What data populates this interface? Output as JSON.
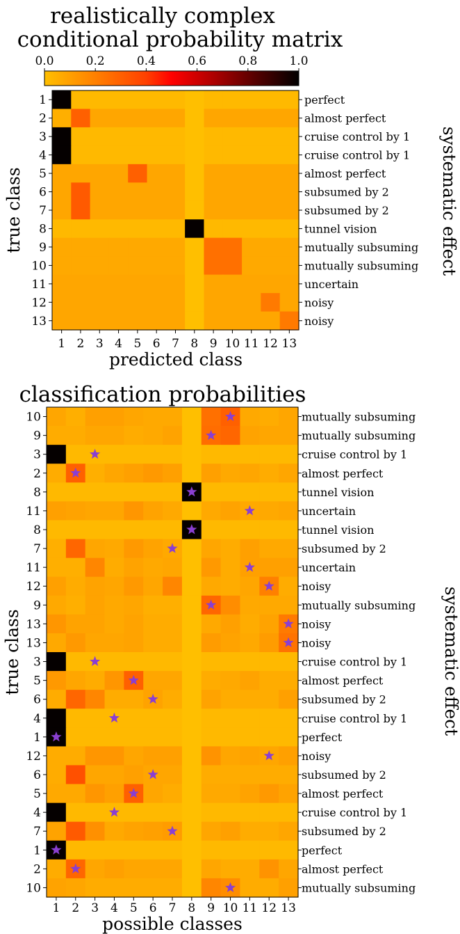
{
  "chart_data": [
    {
      "type": "heatmap",
      "title_lines": [
        "realistically complex",
        "conditional probability matrix"
      ],
      "xlabel": "predicted class",
      "ylabel": "true class",
      "right_label": "systematic effect",
      "colorbar": {
        "min": 0.0,
        "max": 1.0,
        "ticks": [
          "0.0",
          "0.2",
          "0.4",
          "0.6",
          "0.8",
          "1.0"
        ],
        "colormap": "hot_r"
      },
      "x_tick_labels": [
        "1",
        "2",
        "3",
        "4",
        "5",
        "6",
        "7",
        "8",
        "9",
        "10",
        "11",
        "12",
        "13"
      ],
      "y_tick_labels": [
        "1",
        "2",
        "3",
        "4",
        "5",
        "6",
        "7",
        "8",
        "9",
        "10",
        "11",
        "12",
        "13"
      ],
      "row_effects": [
        "perfect",
        "almost perfect",
        "cruise control by 1",
        "cruise control by 1",
        "almost perfect",
        "subsumed by 2",
        "subsumed by 2",
        "tunnel vision",
        "mutually subsuming",
        "mutually subsuming",
        "uncertain",
        "noisy",
        "noisy"
      ],
      "matrix": [
        [
          0.99,
          0.02,
          0.02,
          0.02,
          0.02,
          0.02,
          0.02,
          0.0,
          0.02,
          0.02,
          0.02,
          0.02,
          0.02
        ],
        [
          0.05,
          0.3,
          0.08,
          0.08,
          0.08,
          0.08,
          0.08,
          0.0,
          0.08,
          0.08,
          0.08,
          0.08,
          0.08
        ],
        [
          0.99,
          0.02,
          0.02,
          0.02,
          0.02,
          0.02,
          0.02,
          0.0,
          0.02,
          0.02,
          0.02,
          0.02,
          0.02
        ],
        [
          0.99,
          0.02,
          0.02,
          0.02,
          0.02,
          0.02,
          0.02,
          0.0,
          0.02,
          0.02,
          0.02,
          0.02,
          0.02
        ],
        [
          0.08,
          0.08,
          0.08,
          0.08,
          0.3,
          0.08,
          0.08,
          0.0,
          0.08,
          0.08,
          0.08,
          0.08,
          0.08
        ],
        [
          0.08,
          0.32,
          0.08,
          0.08,
          0.08,
          0.08,
          0.08,
          0.0,
          0.08,
          0.08,
          0.08,
          0.08,
          0.08
        ],
        [
          0.08,
          0.32,
          0.08,
          0.08,
          0.08,
          0.08,
          0.08,
          0.0,
          0.08,
          0.08,
          0.08,
          0.08,
          0.08
        ],
        [
          0.02,
          0.02,
          0.02,
          0.02,
          0.02,
          0.02,
          0.02,
          0.99,
          0.02,
          0.02,
          0.02,
          0.02,
          0.02
        ],
        [
          0.07,
          0.07,
          0.07,
          0.07,
          0.07,
          0.07,
          0.07,
          0.0,
          0.25,
          0.25,
          0.07,
          0.07,
          0.07
        ],
        [
          0.07,
          0.07,
          0.07,
          0.07,
          0.07,
          0.07,
          0.07,
          0.0,
          0.25,
          0.25,
          0.07,
          0.07,
          0.07
        ],
        [
          0.08,
          0.08,
          0.08,
          0.08,
          0.08,
          0.08,
          0.08,
          0.0,
          0.08,
          0.08,
          0.08,
          0.08,
          0.08
        ],
        [
          0.08,
          0.08,
          0.08,
          0.08,
          0.08,
          0.08,
          0.08,
          0.0,
          0.08,
          0.08,
          0.08,
          0.22,
          0.08
        ],
        [
          0.08,
          0.08,
          0.08,
          0.08,
          0.08,
          0.08,
          0.08,
          0.0,
          0.08,
          0.08,
          0.08,
          0.08,
          0.22
        ]
      ]
    },
    {
      "type": "heatmap",
      "title": "classification probabilities",
      "xlabel": "possible classes",
      "ylabel": "true class",
      "right_label": "systematic effect",
      "x_tick_labels": [
        "1",
        "2",
        "3",
        "4",
        "5",
        "6",
        "7",
        "8",
        "9",
        "10",
        "11",
        "12",
        "13"
      ],
      "star_color": "#8a3fd1",
      "rows": [
        {
          "true_class": "10",
          "effect": "mutually subsuming",
          "star": 10,
          "probs": [
            0.08,
            0.05,
            0.1,
            0.1,
            0.08,
            0.07,
            0.07,
            0.0,
            0.25,
            0.3,
            0.07,
            0.06,
            0.08
          ]
        },
        {
          "true_class": "9",
          "effect": "mutually subsuming",
          "star": 9,
          "probs": [
            0.06,
            0.06,
            0.08,
            0.08,
            0.06,
            0.07,
            0.09,
            0.0,
            0.26,
            0.28,
            0.09,
            0.08,
            0.08
          ]
        },
        {
          "true_class": "3",
          "effect": "cruise control by 1",
          "star": 3,
          "probs": [
            0.99,
            0.02,
            0.02,
            0.02,
            0.02,
            0.02,
            0.02,
            0.0,
            0.02,
            0.02,
            0.02,
            0.02,
            0.02
          ]
        },
        {
          "true_class": "2",
          "effect": "almost perfect",
          "star": 2,
          "probs": [
            0.06,
            0.3,
            0.05,
            0.08,
            0.1,
            0.12,
            0.1,
            0.0,
            0.1,
            0.07,
            0.08,
            0.06,
            0.08
          ]
        },
        {
          "true_class": "8",
          "effect": "tunnel vision",
          "star": 8,
          "probs": [
            0.02,
            0.02,
            0.02,
            0.02,
            0.02,
            0.02,
            0.02,
            0.99,
            0.02,
            0.02,
            0.02,
            0.02,
            0.02
          ]
        },
        {
          "true_class": "11",
          "effect": "uncertain",
          "star": 11,
          "probs": [
            0.1,
            0.09,
            0.08,
            0.08,
            0.13,
            0.09,
            0.07,
            0.0,
            0.07,
            0.09,
            0.07,
            0.07,
            0.08
          ]
        },
        {
          "true_class": "8",
          "effect": "tunnel vision",
          "star": 8,
          "probs": [
            0.02,
            0.02,
            0.02,
            0.02,
            0.02,
            0.02,
            0.02,
            0.99,
            0.02,
            0.02,
            0.02,
            0.02,
            0.02
          ]
        },
        {
          "true_class": "7",
          "effect": "subsumed by 2",
          "star": 7,
          "probs": [
            0.05,
            0.28,
            0.08,
            0.07,
            0.12,
            0.09,
            0.07,
            0.0,
            0.08,
            0.06,
            0.1,
            0.07,
            0.07
          ]
        },
        {
          "true_class": "11",
          "effect": "uncertain",
          "star": 11,
          "probs": [
            0.05,
            0.05,
            0.18,
            0.06,
            0.09,
            0.07,
            0.08,
            0.0,
            0.12,
            0.06,
            0.1,
            0.1,
            0.1
          ]
        },
        {
          "true_class": "12",
          "effect": "noisy",
          "star": 12,
          "probs": [
            0.1,
            0.06,
            0.09,
            0.08,
            0.12,
            0.08,
            0.18,
            0.0,
            0.07,
            0.06,
            0.08,
            0.2,
            0.06
          ]
        },
        {
          "true_class": "9",
          "effect": "mutually subsuming",
          "star": 9,
          "probs": [
            0.07,
            0.05,
            0.09,
            0.07,
            0.08,
            0.05,
            0.05,
            0.0,
            0.28,
            0.16,
            0.07,
            0.07,
            0.07
          ]
        },
        {
          "true_class": "13",
          "effect": "noisy",
          "star": 13,
          "probs": [
            0.13,
            0.09,
            0.09,
            0.07,
            0.09,
            0.06,
            0.06,
            0.0,
            0.07,
            0.1,
            0.06,
            0.09,
            0.22
          ]
        },
        {
          "true_class": "13",
          "effect": "noisy",
          "star": 13,
          "probs": [
            0.07,
            0.12,
            0.08,
            0.08,
            0.09,
            0.06,
            0.06,
            0.0,
            0.11,
            0.09,
            0.07,
            0.11,
            0.24
          ]
        },
        {
          "true_class": "3",
          "effect": "cruise control by 1",
          "star": 3,
          "probs": [
            0.99,
            0.02,
            0.02,
            0.02,
            0.02,
            0.02,
            0.02,
            0.0,
            0.02,
            0.02,
            0.02,
            0.02,
            0.02
          ]
        },
        {
          "true_class": "5",
          "effect": "almost perfect",
          "star": 5,
          "probs": [
            0.12,
            0.08,
            0.06,
            0.13,
            0.3,
            0.08,
            0.08,
            0.0,
            0.06,
            0.07,
            0.09,
            0.06,
            0.06
          ]
        },
        {
          "true_class": "6",
          "effect": "subsumed by 2",
          "star": 6,
          "probs": [
            0.06,
            0.28,
            0.18,
            0.06,
            0.06,
            0.09,
            0.06,
            0.0,
            0.09,
            0.06,
            0.06,
            0.06,
            0.1
          ]
        },
        {
          "true_class": "4",
          "effect": "cruise control by 1",
          "star": 4,
          "probs": [
            0.99,
            0.02,
            0.02,
            0.02,
            0.02,
            0.02,
            0.02,
            0.0,
            0.02,
            0.02,
            0.02,
            0.02,
            0.02
          ]
        },
        {
          "true_class": "1",
          "effect": "perfect",
          "star": 1,
          "probs": [
            0.99,
            0.02,
            0.02,
            0.02,
            0.02,
            0.02,
            0.02,
            0.0,
            0.02,
            0.02,
            0.02,
            0.02,
            0.02
          ]
        },
        {
          "true_class": "12",
          "effect": "noisy",
          "star": 12,
          "probs": [
            0.06,
            0.06,
            0.13,
            0.13,
            0.08,
            0.1,
            0.1,
            0.0,
            0.14,
            0.08,
            0.09,
            0.08,
            0.1
          ]
        },
        {
          "true_class": "6",
          "effect": "subsumed by 2",
          "star": 6,
          "probs": [
            0.06,
            0.35,
            0.08,
            0.08,
            0.1,
            0.08,
            0.08,
            0.0,
            0.06,
            0.06,
            0.06,
            0.06,
            0.06
          ]
        },
        {
          "true_class": "5",
          "effect": "almost perfect",
          "star": 5,
          "probs": [
            0.07,
            0.07,
            0.13,
            0.1,
            0.3,
            0.08,
            0.06,
            0.0,
            0.07,
            0.07,
            0.09,
            0.12,
            0.09
          ]
        },
        {
          "true_class": "4",
          "effect": "cruise control by 1",
          "star": 4,
          "probs": [
            0.99,
            0.02,
            0.02,
            0.02,
            0.02,
            0.02,
            0.02,
            0.0,
            0.02,
            0.02,
            0.02,
            0.02,
            0.02
          ]
        },
        {
          "true_class": "7",
          "effect": "subsumed by 2",
          "star": 7,
          "probs": [
            0.09,
            0.32,
            0.15,
            0.07,
            0.09,
            0.1,
            0.11,
            0.0,
            0.08,
            0.1,
            0.06,
            0.06,
            0.08
          ]
        },
        {
          "true_class": "1",
          "effect": "perfect",
          "star": 1,
          "probs": [
            0.99,
            0.02,
            0.02,
            0.02,
            0.02,
            0.02,
            0.02,
            0.0,
            0.02,
            0.02,
            0.02,
            0.02,
            0.02
          ]
        },
        {
          "true_class": "2",
          "effect": "almost perfect",
          "star": 2,
          "probs": [
            0.06,
            0.28,
            0.08,
            0.1,
            0.08,
            0.08,
            0.08,
            0.0,
            0.08,
            0.06,
            0.06,
            0.14,
            0.08
          ]
        },
        {
          "true_class": "10",
          "effect": "mutually subsuming",
          "star": 10,
          "probs": [
            0.09,
            0.08,
            0.06,
            0.06,
            0.06,
            0.06,
            0.06,
            0.0,
            0.18,
            0.16,
            0.06,
            0.06,
            0.1
          ]
        }
      ]
    }
  ]
}
